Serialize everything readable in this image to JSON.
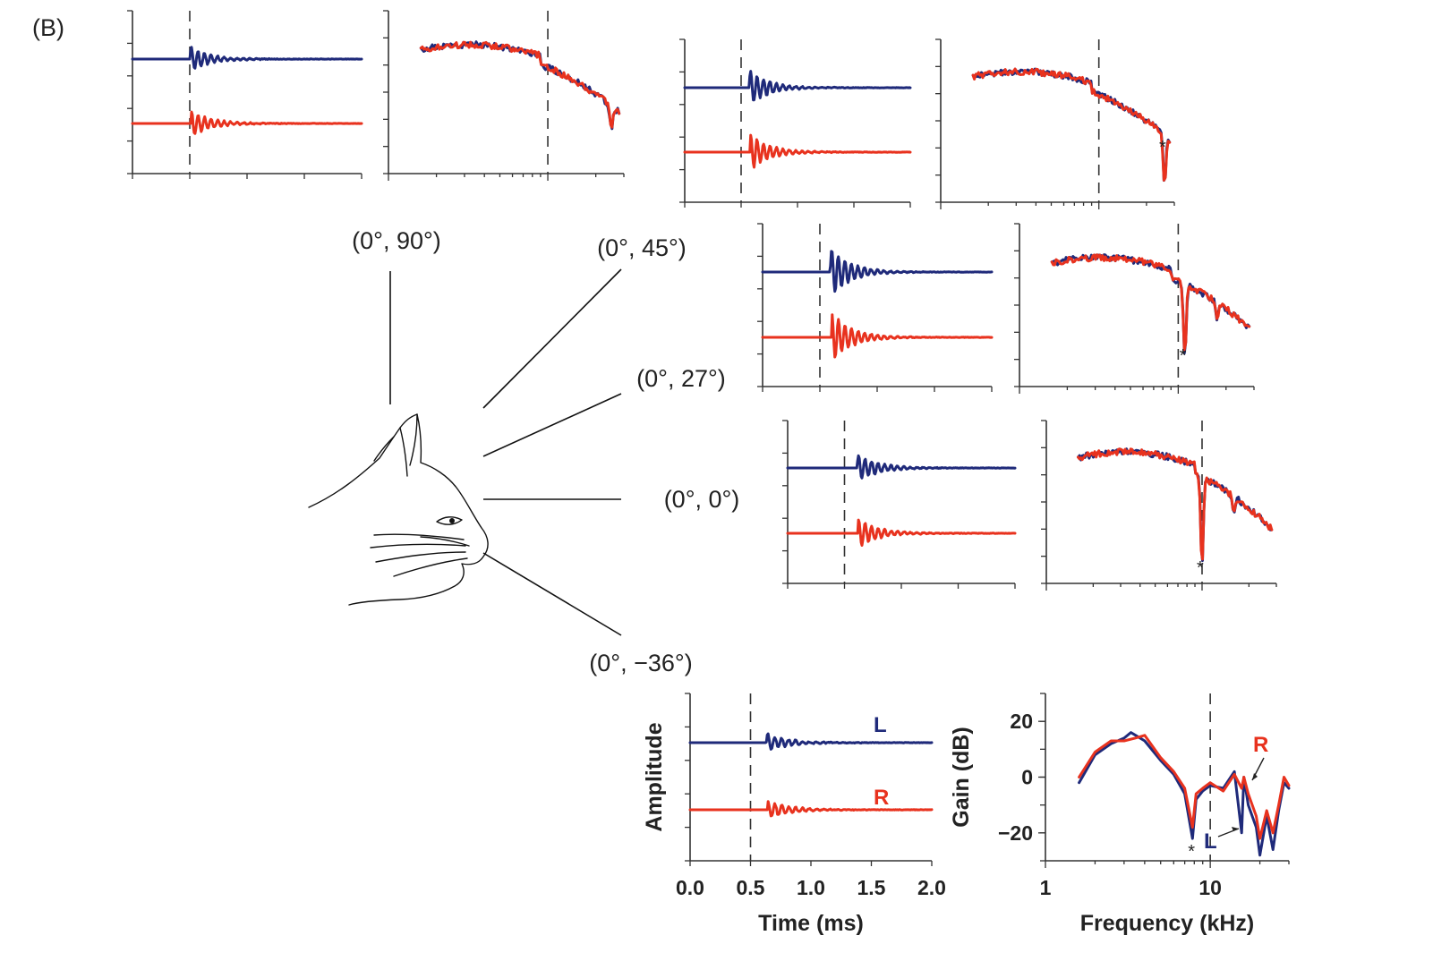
{
  "panel_label": "(B)",
  "colors": {
    "L": "#1f2a7a",
    "R": "#e8321e",
    "axis": "#333333"
  },
  "directions": [
    {
      "key": "el90",
      "label": "(0°, 90°)"
    },
    {
      "key": "el45",
      "label": "(0°, 45°)"
    },
    {
      "key": "el27",
      "label": "(0°, 27°)"
    },
    {
      "key": "el0",
      "label": "(0°, 0°)"
    },
    {
      "key": "elm36",
      "label": "(0°, −36°)"
    }
  ],
  "stars": [
    "*",
    "*",
    "*",
    "*",
    "*"
  ],
  "chart_data": [
    {
      "type": "line",
      "name": "impulse-response",
      "direction": "(0°, 90°)",
      "xlim": [
        0,
        2.0
      ],
      "dashed_x": 0.5,
      "series": [
        {
          "id": "L",
          "values": "waveform"
        },
        {
          "id": "R",
          "values": "waveform"
        }
      ]
    },
    {
      "type": "line",
      "name": "transfer-function",
      "direction": "(0°, 90°)",
      "xscale": "log",
      "xlim": [
        1,
        30
      ],
      "ylim": [
        -30,
        30
      ],
      "dashed_x": 10,
      "series": [
        {
          "id": "L"
        },
        {
          "id": "R"
        }
      ]
    },
    {
      "type": "line",
      "name": "impulse-response",
      "direction": "(0°, 45°)",
      "xlim": [
        0,
        2.0
      ],
      "dashed_x": 0.5
    },
    {
      "type": "line",
      "name": "transfer-function",
      "direction": "(0°, 45°)",
      "xscale": "log",
      "xlim": [
        1,
        30
      ],
      "dashed_x": 10,
      "notch_marked_khz": 26
    },
    {
      "type": "line",
      "name": "impulse-response",
      "direction": "(0°, 27°)",
      "xlim": [
        0,
        2.0
      ],
      "dashed_x": 0.5
    },
    {
      "type": "line",
      "name": "transfer-function",
      "direction": "(0°, 27°)",
      "xscale": "log",
      "xlim": [
        1,
        30
      ],
      "dashed_x": 10,
      "notch_marked_khz": 11
    },
    {
      "type": "line",
      "name": "impulse-response",
      "direction": "(0°, 0°)",
      "xlim": [
        0,
        2.0
      ],
      "dashed_x": 0.5
    },
    {
      "type": "line",
      "name": "transfer-function",
      "direction": "(0°, 0°)",
      "xscale": "log",
      "xlim": [
        1,
        30
      ],
      "dashed_x": 10,
      "notch_marked_khz": 10
    },
    {
      "type": "line",
      "name": "impulse-response",
      "direction": "(0°, −36°)",
      "xlabel": "Time (ms)",
      "ylabel": "Amplitude",
      "xlim": [
        0,
        2.0
      ],
      "xticks": [
        0.0,
        0.5,
        1.0,
        1.5,
        2.0
      ],
      "xtick_labels": [
        "0.0",
        "0.5",
        "1.0",
        "1.5",
        "2.0"
      ],
      "dashed_x": 0.5,
      "series_labels": {
        "L": "L",
        "R": "R"
      }
    },
    {
      "type": "line",
      "name": "transfer-function",
      "direction": "(0°, −36°)",
      "xlabel": "Frequency (kHz)",
      "ylabel": "Gain (dB)",
      "xscale": "log",
      "xlim": [
        1,
        30
      ],
      "xticks": [
        1,
        10
      ],
      "xtick_labels": [
        "1",
        "10"
      ],
      "ylim": [
        -30,
        30
      ],
      "yticks": [
        20,
        0,
        -20
      ],
      "ytick_labels": [
        "20",
        "0",
        "−20"
      ],
      "dashed_x": 10,
      "series_labels": {
        "L": "L",
        "R": "R"
      },
      "series": [
        {
          "id": "L",
          "x": [
            1.6,
            2.0,
            2.5,
            3.0,
            3.3,
            4.0,
            5.0,
            6.0,
            7.0,
            7.8,
            8.2,
            9.0,
            10.0,
            12.0,
            14.0,
            15.5,
            16.0,
            17.0,
            19.0,
            20.0,
            22.0,
            24.0,
            26.0,
            28.0,
            30.0
          ],
          "y": [
            -2,
            8,
            12,
            14,
            16,
            13,
            6,
            1,
            -6,
            -22,
            -8,
            -5,
            -3,
            -4,
            2,
            -20,
            0,
            -10,
            -18,
            -28,
            -14,
            -26,
            -12,
            -2,
            -4
          ]
        },
        {
          "id": "R",
          "x": [
            1.6,
            2.0,
            2.5,
            3.0,
            3.5,
            4.0,
            5.0,
            6.0,
            7.0,
            7.8,
            8.2,
            9.0,
            10.0,
            12.0,
            14.0,
            15.5,
            16.0,
            17.0,
            19.0,
            20.0,
            22.0,
            24.0,
            26.0,
            28.0,
            30.0
          ],
          "y": [
            0,
            9,
            13,
            13,
            14,
            15,
            7,
            2,
            -4,
            -18,
            -6,
            -4,
            -2,
            -5,
            1,
            -4,
            0,
            -6,
            -14,
            -22,
            -12,
            -20,
            -10,
            0,
            -3
          ]
        }
      ]
    }
  ]
}
